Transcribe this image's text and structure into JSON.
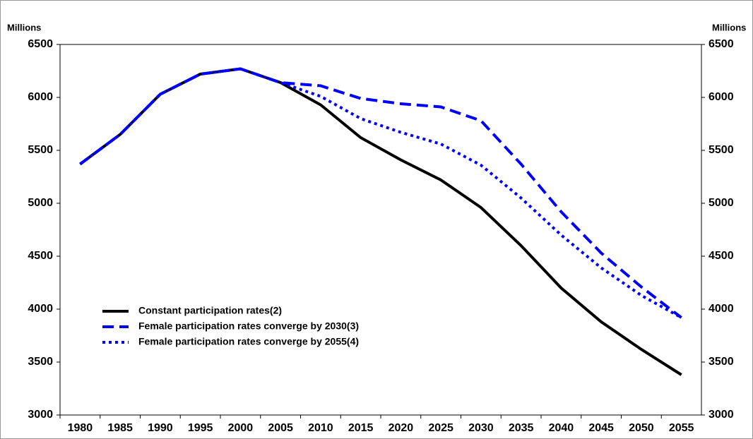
{
  "chart_data": {
    "type": "line",
    "y_label": "Millions",
    "y2_label": "Millions",
    "categories": [
      "1980",
      "1985",
      "1990",
      "1995",
      "2000",
      "2005",
      "2010",
      "2015",
      "2020",
      "2025",
      "2030",
      "2035",
      "2040",
      "2045",
      "2050",
      "2055"
    ],
    "series": [
      {
        "name": "Constant participation rates(2)",
        "color": "#000000",
        "style": "solid",
        "values": [
          5370,
          5650,
          6030,
          6220,
          6270,
          6140,
          5930,
          5620,
          5410,
          5220,
          4960,
          4600,
          4200,
          3880,
          3620,
          3380
        ]
      },
      {
        "name": "Female participation rates converge by 2030(3)",
        "color": "#0000ff",
        "style": "dashed",
        "values": [
          5370,
          5650,
          6030,
          6220,
          6270,
          6140,
          6110,
          5990,
          5940,
          5910,
          5780,
          5370,
          4920,
          4530,
          4210,
          3920
        ]
      },
      {
        "name": "Female participation rates converge by 2055(4)",
        "color": "#0000ff",
        "style": "dotted",
        "values": [
          5370,
          5650,
          6030,
          6220,
          6270,
          6140,
          6010,
          5800,
          5670,
          5560,
          5360,
          5050,
          4700,
          4390,
          4130,
          3920
        ]
      }
    ],
    "ylim": [
      3000,
      6500
    ],
    "yticks": [
      3000,
      3500,
      4000,
      4500,
      5000,
      5500,
      6000,
      6500
    ],
    "y2lim": [
      3000,
      6500
    ],
    "y2ticks": [
      3000,
      3500,
      4000,
      4500,
      5000,
      5500,
      6000,
      6500
    ],
    "legend": "lower-left"
  }
}
